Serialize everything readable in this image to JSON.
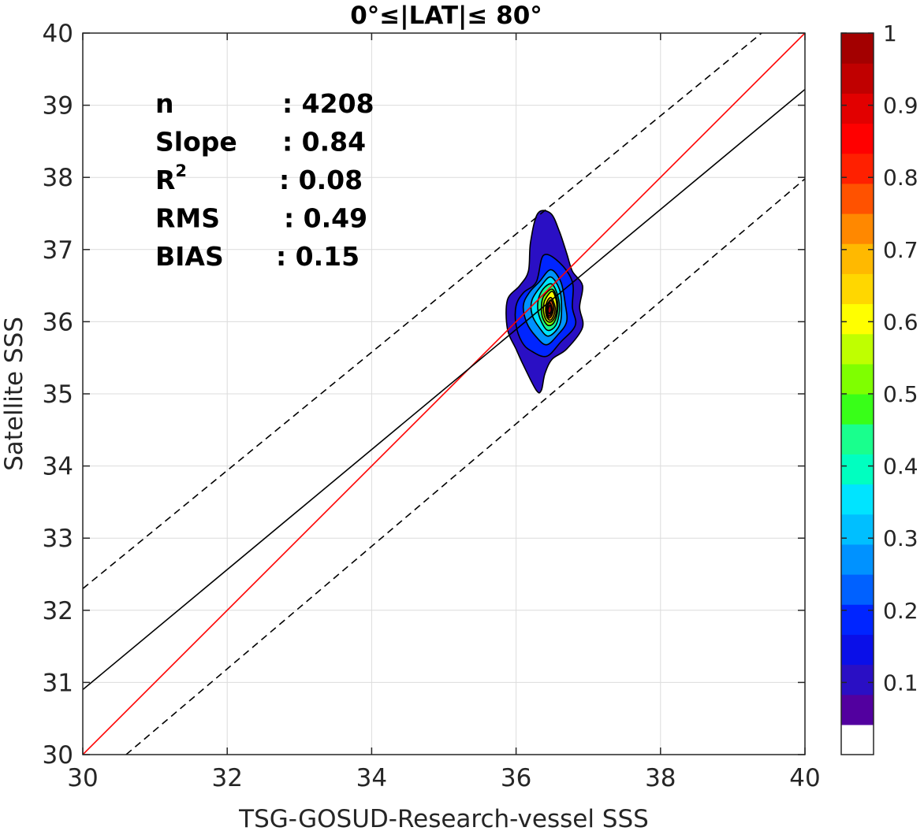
{
  "chart_data": {
    "type": "contour",
    "title": "0°≤|LAT|≤ 80°",
    "xlabel": "TSG-GOSUD-Research-vessel SSS",
    "ylabel": "Satellite SSS",
    "xlim": [
      30,
      40
    ],
    "ylim": [
      30,
      40
    ],
    "xticks": [
      30,
      32,
      34,
      36,
      38,
      40
    ],
    "yticks": [
      30,
      31,
      32,
      33,
      34,
      35,
      36,
      37,
      38,
      39,
      40
    ],
    "grid": true,
    "stats": [
      {
        "label": "n",
        "value": ": 4208"
      },
      {
        "label": "Slope",
        "value": ": 0.84"
      },
      {
        "label": "R",
        "superscript": "2",
        "value": ": 0.08"
      },
      {
        "label": "RMS",
        "value": ": 0.49"
      },
      {
        "label": "BIAS",
        "value": ": 0.15"
      }
    ],
    "lines": [
      {
        "role": "one-to-one",
        "color": "#ff0000",
        "style": "solid",
        "points": [
          [
            30,
            30
          ],
          [
            40,
            40
          ]
        ]
      },
      {
        "role": "regression",
        "color": "#000000",
        "style": "solid",
        "points": [
          [
            30,
            30.9
          ],
          [
            40,
            39.22
          ]
        ]
      },
      {
        "role": "upper-bound",
        "color": "#000000",
        "style": "dashed",
        "points": [
          [
            30,
            32.3
          ],
          [
            39.4,
            40
          ]
        ]
      },
      {
        "role": "lower-bound",
        "color": "#000000",
        "style": "dashed",
        "points": [
          [
            30.6,
            30
          ],
          [
            40,
            37.98
          ]
        ]
      }
    ],
    "density": {
      "center": [
        36.46,
        36.2
      ],
      "levels": [
        {
          "level": 0.05,
          "color": "#2a0fc4",
          "points": [
            [
              36.3,
              37.5
            ],
            [
              36.48,
              37.5
            ],
            [
              36.6,
              37.25
            ],
            [
              36.7,
              36.95
            ],
            [
              36.78,
              36.7
            ],
            [
              36.92,
              36.5
            ],
            [
              36.88,
              36.2
            ],
            [
              36.92,
              35.92
            ],
            [
              36.7,
              35.62
            ],
            [
              36.5,
              35.48
            ],
            [
              36.4,
              35.28
            ],
            [
              36.35,
              35.05
            ],
            [
              36.28,
              35.05
            ],
            [
              36.1,
              35.4
            ],
            [
              36.0,
              35.62
            ],
            [
              35.88,
              35.9
            ],
            [
              35.88,
              36.3
            ],
            [
              36.05,
              36.5
            ],
            [
              36.17,
              36.7
            ],
            [
              36.2,
              37.1
            ]
          ]
        },
        {
          "level": 0.15,
          "color": "#0025ff",
          "points": [
            [
              36.38,
              36.92
            ],
            [
              36.6,
              36.82
            ],
            [
              36.78,
              36.55
            ],
            [
              36.78,
              36.2
            ],
            [
              36.82,
              35.95
            ],
            [
              36.62,
              35.72
            ],
            [
              36.42,
              35.52
            ],
            [
              36.2,
              35.6
            ],
            [
              36.08,
              35.72
            ],
            [
              36.0,
              35.95
            ],
            [
              36.0,
              36.22
            ],
            [
              36.1,
              36.4
            ],
            [
              36.28,
              36.55
            ]
          ]
        },
        {
          "level": 0.25,
          "color": "#0092ff",
          "points": [
            [
              36.48,
              36.72
            ],
            [
              36.62,
              36.55
            ],
            [
              36.68,
              36.25
            ],
            [
              36.7,
              36.0
            ],
            [
              36.58,
              35.82
            ],
            [
              36.42,
              35.68
            ],
            [
              36.27,
              35.8
            ],
            [
              36.15,
              35.98
            ],
            [
              36.1,
              36.22
            ],
            [
              36.18,
              36.4
            ],
            [
              36.32,
              36.55
            ]
          ]
        },
        {
          "level": 0.35,
          "color": "#00e4ff",
          "points": [
            [
              36.48,
              36.62
            ],
            [
              36.6,
              36.45
            ],
            [
              36.63,
              36.2
            ],
            [
              36.6,
              35.95
            ],
            [
              36.45,
              35.8
            ],
            [
              36.32,
              35.92
            ],
            [
              36.22,
              36.1
            ],
            [
              36.22,
              36.3
            ],
            [
              36.35,
              36.5
            ]
          ]
        },
        {
          "level": 0.45,
          "color": "#19ff8d",
          "points": [
            [
              36.5,
              36.52
            ],
            [
              36.58,
              36.35
            ],
            [
              36.6,
              36.15
            ],
            [
              36.55,
              35.95
            ],
            [
              36.44,
              35.88
            ],
            [
              36.35,
              36.0
            ],
            [
              36.3,
              36.18
            ],
            [
              36.32,
              36.35
            ],
            [
              36.4,
              36.48
            ]
          ]
        },
        {
          "level": 0.55,
          "color": "#7fff00",
          "points": [
            [
              36.5,
              36.45
            ],
            [
              36.57,
              36.3
            ],
            [
              36.57,
              36.12
            ],
            [
              36.52,
              35.98
            ],
            [
              36.44,
              35.95
            ],
            [
              36.37,
              36.05
            ],
            [
              36.35,
              36.2
            ],
            [
              36.38,
              36.35
            ]
          ]
        },
        {
          "level": 0.65,
          "color": "#ffff00",
          "points": [
            [
              36.5,
              36.42
            ],
            [
              36.56,
              36.27
            ],
            [
              36.55,
              36.1
            ],
            [
              36.49,
              36.0
            ],
            [
              36.42,
              36.02
            ],
            [
              36.38,
              36.15
            ],
            [
              36.4,
              36.3
            ]
          ]
        },
        {
          "level": 0.72,
          "color": "#ffb900",
          "points": [
            [
              36.49,
              36.33
            ],
            [
              36.54,
              36.2
            ],
            [
              36.52,
              36.08
            ],
            [
              36.47,
              36.02
            ],
            [
              36.42,
              36.08
            ],
            [
              36.41,
              36.2
            ],
            [
              36.44,
              36.3
            ]
          ]
        },
        {
          "level": 0.82,
          "color": "#ff5200",
          "points": [
            [
              36.48,
              36.3
            ],
            [
              36.52,
              36.2
            ],
            [
              36.5,
              36.1
            ],
            [
              36.46,
              36.05
            ],
            [
              36.43,
              36.1
            ],
            [
              36.43,
              36.22
            ]
          ]
        },
        {
          "level": 0.92,
          "color": "#e20000",
          "points": [
            [
              36.47,
              36.26
            ],
            [
              36.5,
              36.18
            ],
            [
              36.48,
              36.1
            ],
            [
              36.45,
              36.08
            ],
            [
              36.43,
              36.14
            ],
            [
              36.44,
              36.22
            ]
          ]
        },
        {
          "level": 0.97,
          "color": "#a30000",
          "points": [
            [
              36.47,
              36.23
            ],
            [
              36.49,
              36.16
            ],
            [
              36.46,
              36.11
            ],
            [
              36.44,
              36.16
            ]
          ]
        }
      ]
    },
    "colorbar": {
      "min": 0,
      "max": 1,
      "ticks": [
        0.1,
        0.2,
        0.3,
        0.4,
        0.5,
        0.6,
        0.7,
        0.8,
        0.9,
        1
      ],
      "tick_labels": [
        "0.1",
        "0.2",
        "0.3",
        "0.4",
        "0.5",
        "0.6",
        "0.7",
        "0.8",
        "0.9",
        "1"
      ],
      "colors": [
        "#ffffff",
        "#52009f",
        "#2a0fc4",
        "#0a0fe8",
        "#0025ff",
        "#0061ff",
        "#0092ff",
        "#00bfff",
        "#00e4ff",
        "#00ffc0",
        "#19ff8d",
        "#38ff18",
        "#7fff00",
        "#bfff00",
        "#ffff00",
        "#ffd700",
        "#ffb900",
        "#ff8800",
        "#ff5200",
        "#ff2000",
        "#ff0000",
        "#e20000",
        "#c00000",
        "#a30000"
      ]
    }
  }
}
